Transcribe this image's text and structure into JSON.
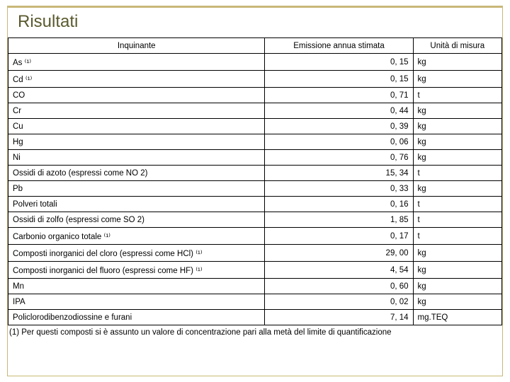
{
  "title": "Risultati",
  "columns": {
    "pollutant": "Inquinante",
    "emission": "Emissione annua stimata",
    "unit": "Unità di misura"
  },
  "rows": [
    {
      "name": "As ⁽¹⁾",
      "value": "0, 15",
      "unit": "kg"
    },
    {
      "name": "Cd ⁽¹⁾",
      "value": "0, 15",
      "unit": "kg"
    },
    {
      "name": "CO",
      "value": "0, 71",
      "unit": "t"
    },
    {
      "name": "Cr",
      "value": "0, 44",
      "unit": "kg"
    },
    {
      "name": "Cu",
      "value": "0, 39",
      "unit": "kg"
    },
    {
      "name": "Hg",
      "value": "0, 06",
      "unit": "kg"
    },
    {
      "name": "Ni",
      "value": "0, 76",
      "unit": "kg"
    },
    {
      "name": "Ossidi di azoto (espressi come NO 2)",
      "value": "15, 34",
      "unit": "t"
    },
    {
      "name": "Pb",
      "value": "0, 33",
      "unit": "kg"
    },
    {
      "name": "Polveri totali",
      "value": "0, 16",
      "unit": "t"
    },
    {
      "name": "Ossidi di zolfo (espressi come SO 2)",
      "value": "1, 85",
      "unit": "t"
    },
    {
      "name": "Carbonio organico totale ⁽¹⁾",
      "value": "0, 17",
      "unit": "t"
    },
    {
      "name": "Composti inorganici del cloro (espressi come HCl) ⁽¹⁾",
      "value": "29, 00",
      "unit": "kg"
    },
    {
      "name": "Composti inorganici del fluoro (espressi come HF) ⁽¹⁾",
      "value": "4, 54",
      "unit": "kg"
    },
    {
      "name": "Mn",
      "value": "0, 60",
      "unit": "kg"
    },
    {
      "name": "IPA",
      "value": "0, 02",
      "unit": "kg"
    },
    {
      "name": "Policlorodibenzodiossine e furani",
      "value": "7, 14",
      "unit": "mg.TEQ"
    }
  ],
  "footnote": "(1) Per questi composti si è assunto un valore di concentrazione pari alla metà del limite di quantificazione"
}
